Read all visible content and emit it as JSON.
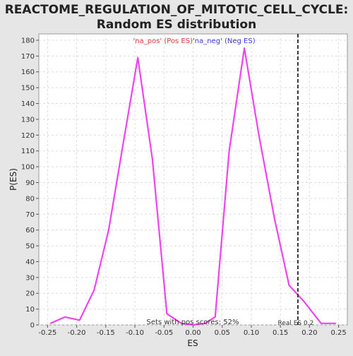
{
  "chart_data": {
    "type": "line",
    "title_line1": "REACTOME_REGULATION_OF_MITOTIC_CELL_CYCLE:",
    "title_line2": "Random ES distribution",
    "xlabel": "ES",
    "ylabel": "P(ES)",
    "xlim": [
      -0.265,
      0.265
    ],
    "ylim": [
      0,
      184
    ],
    "x_ticks": [
      -0.25,
      -0.2,
      -0.15,
      -0.1,
      -0.05,
      0.0,
      0.05,
      0.1,
      0.15,
      0.2,
      0.25
    ],
    "x_tick_labels": [
      "-0.25",
      "-0.20",
      "-0.15",
      "-0.10",
      "-0.05",
      "0.00",
      "0.05",
      "0.10",
      "0.15",
      "0.20",
      "0.25"
    ],
    "y_ticks": [
      0,
      10,
      20,
      30,
      40,
      50,
      60,
      70,
      80,
      90,
      100,
      110,
      120,
      130,
      140,
      150,
      160,
      170,
      180
    ],
    "grid": true,
    "legend": {
      "pos_label": "'na_pos' (Pos ES)",
      "neg_label": "'na_neg' (Neg ES)",
      "pos_color": "#e03c3c",
      "neg_color": "#3c3ce0",
      "placement": "top-center"
    },
    "line_color": "#ee44ee",
    "series": [
      {
        "x": [
          -0.245,
          -0.22,
          -0.195,
          -0.17,
          -0.145,
          -0.12,
          -0.095,
          -0.07,
          -0.045,
          -0.02,
          0.0,
          0.02,
          0.038,
          0.062,
          0.088,
          0.113,
          0.14,
          0.165,
          0.19,
          0.22,
          0.245
        ],
        "y": [
          1,
          5,
          3,
          22,
          60,
          115,
          169,
          105,
          7,
          1,
          0,
          1,
          5,
          110,
          175,
          120,
          67,
          25,
          15,
          1,
          1
        ]
      }
    ],
    "real_es": {
      "value": 0.18,
      "label": "Real ES 0.2",
      "color": "#333333"
    },
    "annotation": "Sets with pos scores: 52%"
  }
}
